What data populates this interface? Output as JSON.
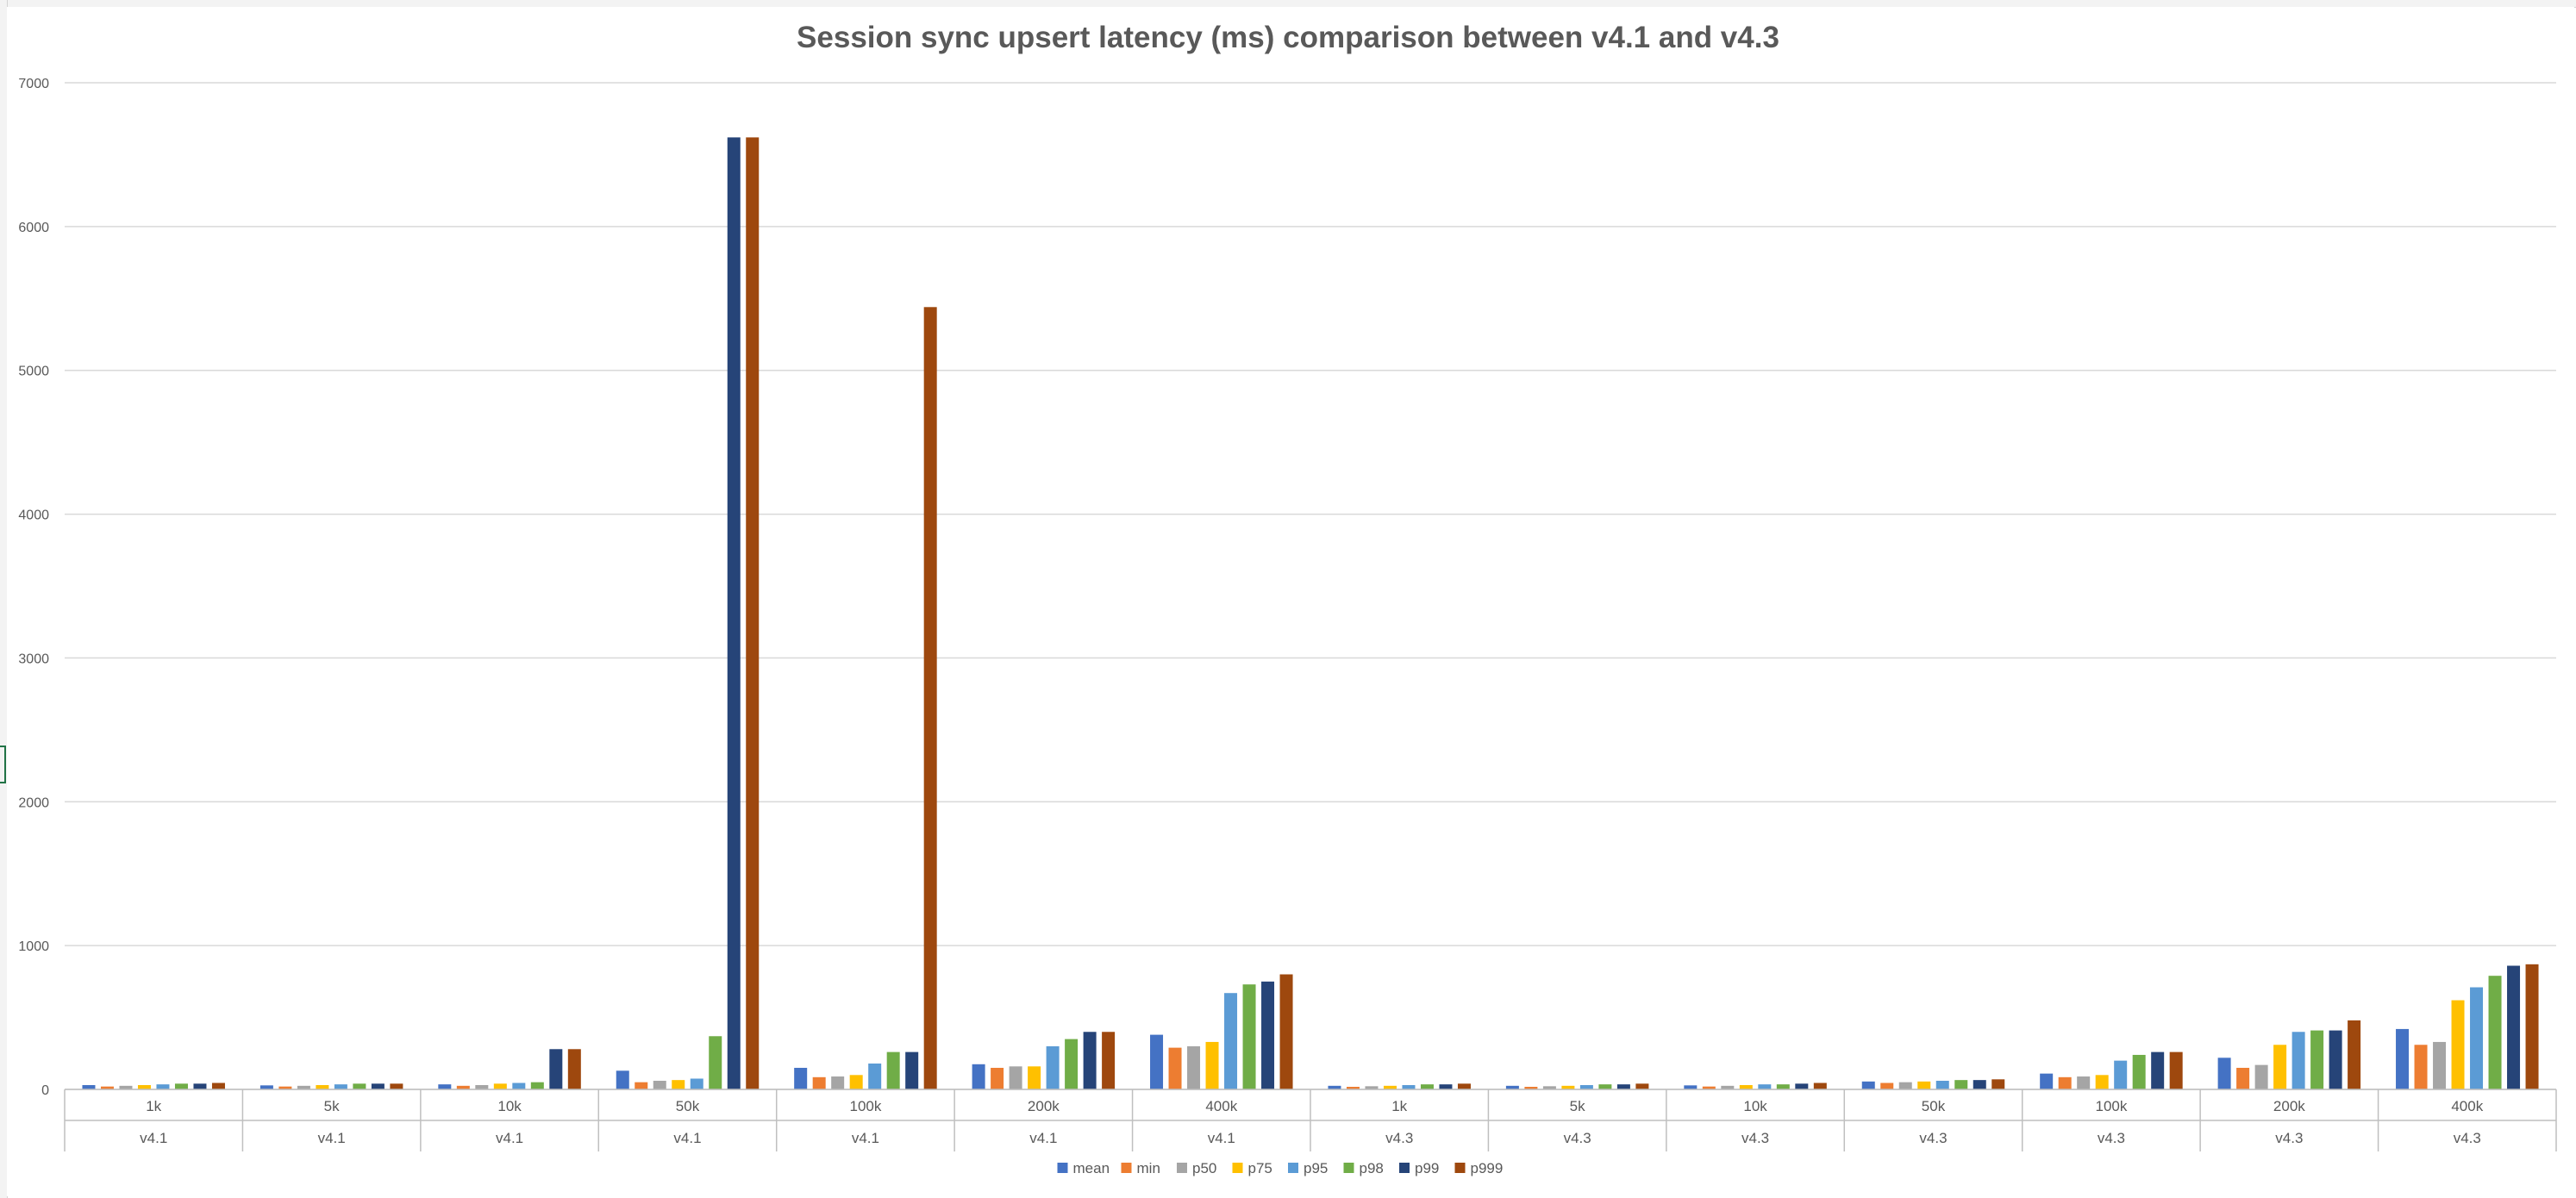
{
  "chart_data": {
    "type": "bar",
    "title": "Session sync upsert latency (ms) comparison between v4.1 and v4.3",
    "xlabel": "",
    "ylabel": "",
    "ylim": [
      0,
      7000
    ],
    "yticks": [
      0,
      1000,
      2000,
      3000,
      4000,
      5000,
      6000,
      7000
    ],
    "grid": true,
    "legend_position": "bottom",
    "categories": [
      {
        "size": "1k",
        "version": "v4.1"
      },
      {
        "size": "5k",
        "version": "v4.1"
      },
      {
        "size": "10k",
        "version": "v4.1"
      },
      {
        "size": "50k",
        "version": "v4.1"
      },
      {
        "size": "100k",
        "version": "v4.1"
      },
      {
        "size": "200k",
        "version": "v4.1"
      },
      {
        "size": "400k",
        "version": "v4.1"
      },
      {
        "size": "1k",
        "version": "v4.3"
      },
      {
        "size": "5k",
        "version": "v4.3"
      },
      {
        "size": "10k",
        "version": "v4.3"
      },
      {
        "size": "50k",
        "version": "v4.3"
      },
      {
        "size": "100k",
        "version": "v4.3"
      },
      {
        "size": "200k",
        "version": "v4.3"
      },
      {
        "size": "400k",
        "version": "v4.3"
      }
    ],
    "series": [
      {
        "name": "mean",
        "color": "#4472C4",
        "values": [
          30,
          28,
          35,
          130,
          150,
          175,
          380,
          25,
          25,
          28,
          55,
          110,
          220,
          420
        ]
      },
      {
        "name": "min",
        "color": "#ED7D31",
        "values": [
          20,
          20,
          25,
          50,
          85,
          150,
          290,
          18,
          18,
          20,
          45,
          85,
          150,
          310
        ]
      },
      {
        "name": "p50",
        "color": "#A5A5A5",
        "values": [
          25,
          25,
          30,
          60,
          90,
          160,
          300,
          22,
          22,
          25,
          50,
          90,
          170,
          330
        ]
      },
      {
        "name": "p75",
        "color": "#FFC000",
        "values": [
          30,
          30,
          40,
          65,
          100,
          160,
          330,
          25,
          25,
          30,
          55,
          100,
          310,
          620
        ]
      },
      {
        "name": "p95",
        "color": "#5B9BD5",
        "values": [
          35,
          35,
          45,
          75,
          180,
          300,
          670,
          30,
          30,
          35,
          60,
          200,
          400,
          710
        ]
      },
      {
        "name": "p98",
        "color": "#70AD47",
        "values": [
          40,
          40,
          50,
          370,
          260,
          350,
          730,
          35,
          35,
          35,
          65,
          240,
          410,
          790
        ]
      },
      {
        "name": "p99",
        "color": "#264478",
        "values": [
          40,
          40,
          280,
          6620,
          260,
          400,
          750,
          35,
          35,
          40,
          65,
          260,
          410,
          860
        ]
      },
      {
        "name": "p999",
        "color": "#9E480E",
        "values": [
          45,
          40,
          280,
          6620,
          5440,
          400,
          800,
          40,
          40,
          45,
          70,
          260,
          480,
          870
        ]
      }
    ]
  }
}
